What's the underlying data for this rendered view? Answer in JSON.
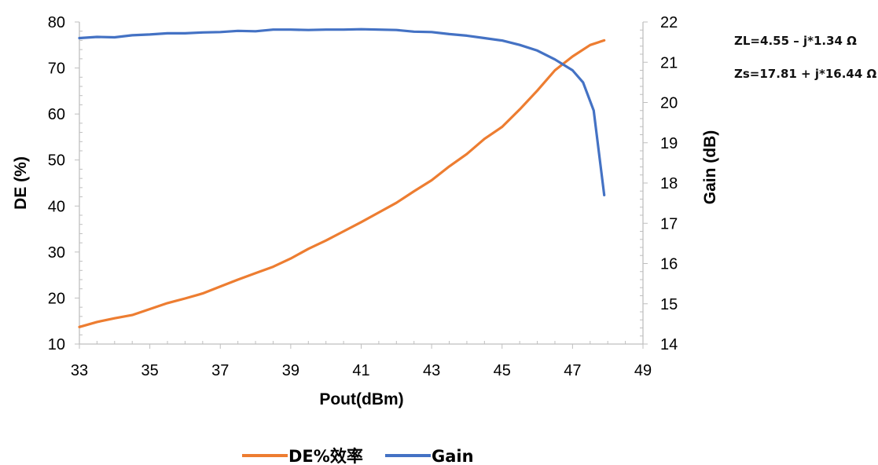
{
  "chart_data": {
    "type": "line",
    "xlabel": "Pout(dBm)",
    "ylabel_left": "DE (%)",
    "ylabel_right": "Gain (dB)",
    "xlim": [
      33,
      49
    ],
    "ylim_left": [
      10,
      80
    ],
    "ylim_right": [
      14,
      22
    ],
    "x_ticks": [
      33,
      35,
      37,
      39,
      41,
      43,
      45,
      47,
      49
    ],
    "y_left_ticks": [
      10,
      20,
      30,
      40,
      50,
      60,
      70,
      80
    ],
    "y_right_ticks": [
      14,
      15,
      16,
      17,
      18,
      19,
      20,
      21,
      22
    ],
    "annotations": [
      "ZL=4.55 – j*1.34 Ω",
      "Zs=17.81 + j*16.44 Ω"
    ],
    "legend_position": "bottom",
    "series": [
      {
        "name": "DE%效率",
        "axis": "left",
        "color": "#ED7D31",
        "x": [
          33,
          33.5,
          34,
          34.5,
          35,
          35.5,
          36,
          36.5,
          37,
          37.5,
          38,
          38.5,
          39,
          39.5,
          40,
          40.5,
          41,
          41.5,
          42,
          42.5,
          43,
          43.5,
          44,
          44.5,
          45,
          45.5,
          46,
          46.5,
          47,
          47.5,
          47.9
        ],
        "y": [
          13.7,
          14.8,
          15.6,
          16.3,
          17.6,
          18.9,
          19.9,
          21.0,
          22.5,
          24.0,
          25.4,
          26.8,
          28.6,
          30.7,
          32.5,
          34.5,
          36.5,
          38.6,
          40.7,
          43.2,
          45.6,
          48.6,
          51.3,
          54.6,
          57.2,
          61.0,
          65.1,
          69.5,
          72.5,
          75.0,
          76.0
        ]
      },
      {
        "name": "Gain",
        "axis": "right",
        "color": "#4472C4",
        "x": [
          33,
          33.5,
          34,
          34.5,
          35,
          35.5,
          36,
          36.5,
          37,
          37.5,
          38,
          38.5,
          39,
          39.5,
          40,
          40.5,
          41,
          41.5,
          42,
          42.5,
          43,
          43.5,
          44,
          44.5,
          45,
          45.5,
          46,
          46.5,
          47,
          47.3,
          47.6,
          47.9
        ],
        "y": [
          21.6,
          21.63,
          21.62,
          21.67,
          21.69,
          21.72,
          21.72,
          21.74,
          21.75,
          21.78,
          21.77,
          21.81,
          21.81,
          21.8,
          21.81,
          21.81,
          21.82,
          21.81,
          21.8,
          21.76,
          21.75,
          21.7,
          21.66,
          21.6,
          21.54,
          21.43,
          21.29,
          21.07,
          20.8,
          20.5,
          19.8,
          17.7
        ]
      }
    ]
  }
}
